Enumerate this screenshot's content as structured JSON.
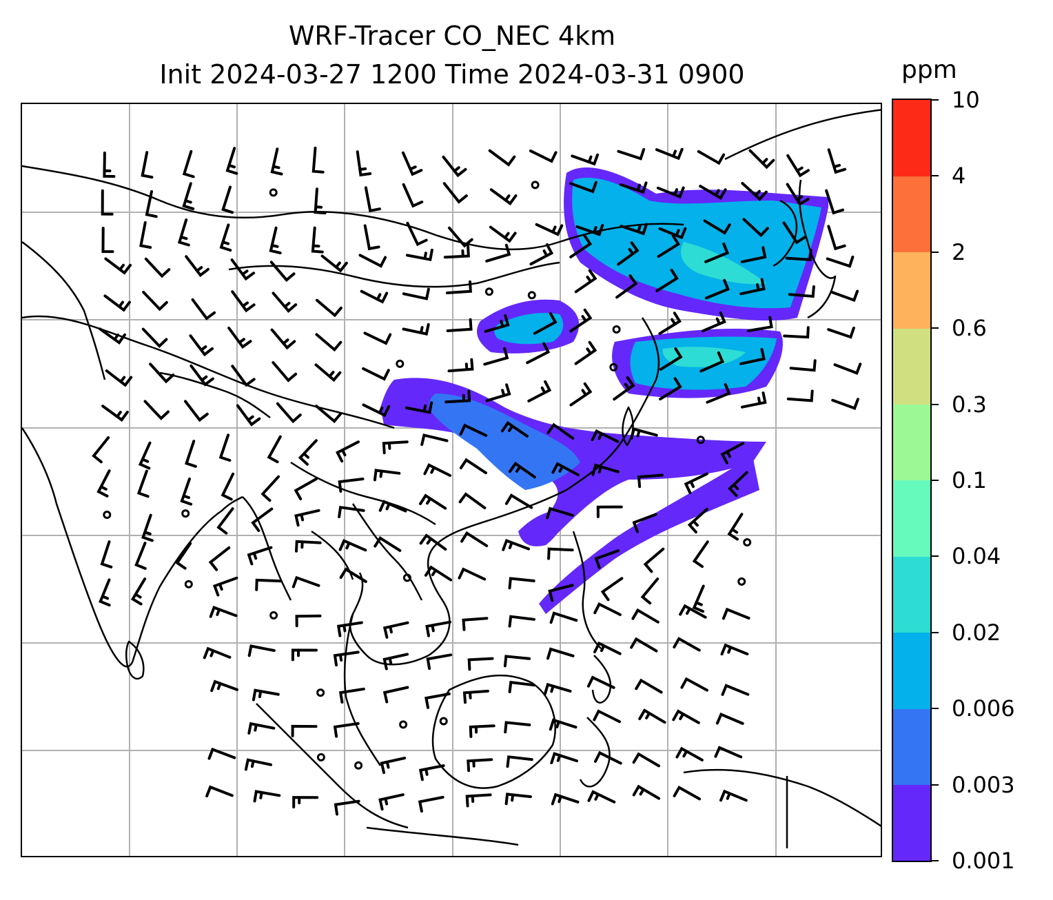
{
  "title": {
    "line1": "WRF-Tracer CO_NEC 4km",
    "line2": "Init 2024-03-27 1200 Time 2024-03-31 0900"
  },
  "colorbar": {
    "units": "ppm",
    "levels": [
      "0.001",
      "0.003",
      "0.006",
      "0.02",
      "0.04",
      "0.1",
      "0.3",
      "0.6",
      "2",
      "4",
      "10"
    ],
    "colors": [
      "#6428fa",
      "#3475f4",
      "#04b1ea",
      "#2ddcd4",
      "#66fabd",
      "#9cf894",
      "#d0e080",
      "#feb25c",
      "#fe703a",
      "#fe2a18"
    ]
  },
  "map": {
    "gridlines": true,
    "gridline_color": "#b0b0b0",
    "coastline_color": "#000000",
    "plume_colors": {
      "outer": "#6428fa",
      "mid": "#3475f4",
      "core": "#04b1ea",
      "high": "#2ddcd4"
    }
  }
}
